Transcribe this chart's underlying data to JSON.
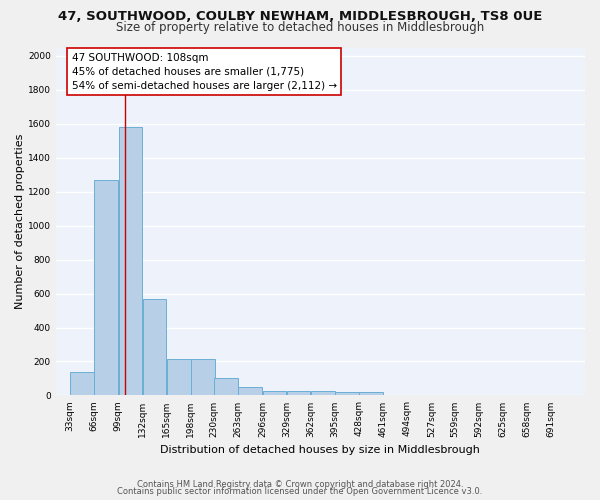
{
  "title1": "47, SOUTHWOOD, COULBY NEWHAM, MIDDLESBROUGH, TS8 0UE",
  "title2": "Size of property relative to detached houses in Middlesbrough",
  "xlabel": "Distribution of detached houses by size in Middlesbrough",
  "ylabel": "Number of detached properties",
  "bin_edges": [
    33,
    66,
    99,
    132,
    165,
    198,
    230,
    263,
    296,
    329,
    362,
    395,
    428,
    461,
    494,
    527,
    559,
    592,
    625,
    658,
    691
  ],
  "bar_heights": [
    140,
    1270,
    1580,
    570,
    215,
    215,
    100,
    50,
    25,
    25,
    25,
    20,
    20,
    0,
    0,
    0,
    0,
    0,
    0,
    0
  ],
  "bar_color": "#b8cfe8",
  "bar_edge_color": "#6baed6",
  "background_color": "#edf2fb",
  "grid_color": "#ffffff",
  "property_size": 108,
  "red_line_color": "#cc0000",
  "ann_line1": "47 SOUTHWOOD: 108sqm",
  "ann_line2": "45% of detached houses are smaller (1,775)",
  "ann_line3": "54% of semi-detached houses are larger (2,112) →",
  "annotation_box_color": "#ffffff",
  "annotation_box_edge": "#cc0000",
  "ylim": [
    0,
    2050
  ],
  "yticks": [
    0,
    200,
    400,
    600,
    800,
    1000,
    1200,
    1400,
    1600,
    1800,
    2000
  ],
  "footer1": "Contains HM Land Registry data © Crown copyright and database right 2024.",
  "footer2": "Contains public sector information licensed under the Open Government Licence v3.0.",
  "title1_fontsize": 9.5,
  "title2_fontsize": 8.5,
  "xlabel_fontsize": 8,
  "ylabel_fontsize": 8,
  "tick_fontsize": 6.5,
  "annotation_fontsize": 7.5,
  "footer_fontsize": 6
}
